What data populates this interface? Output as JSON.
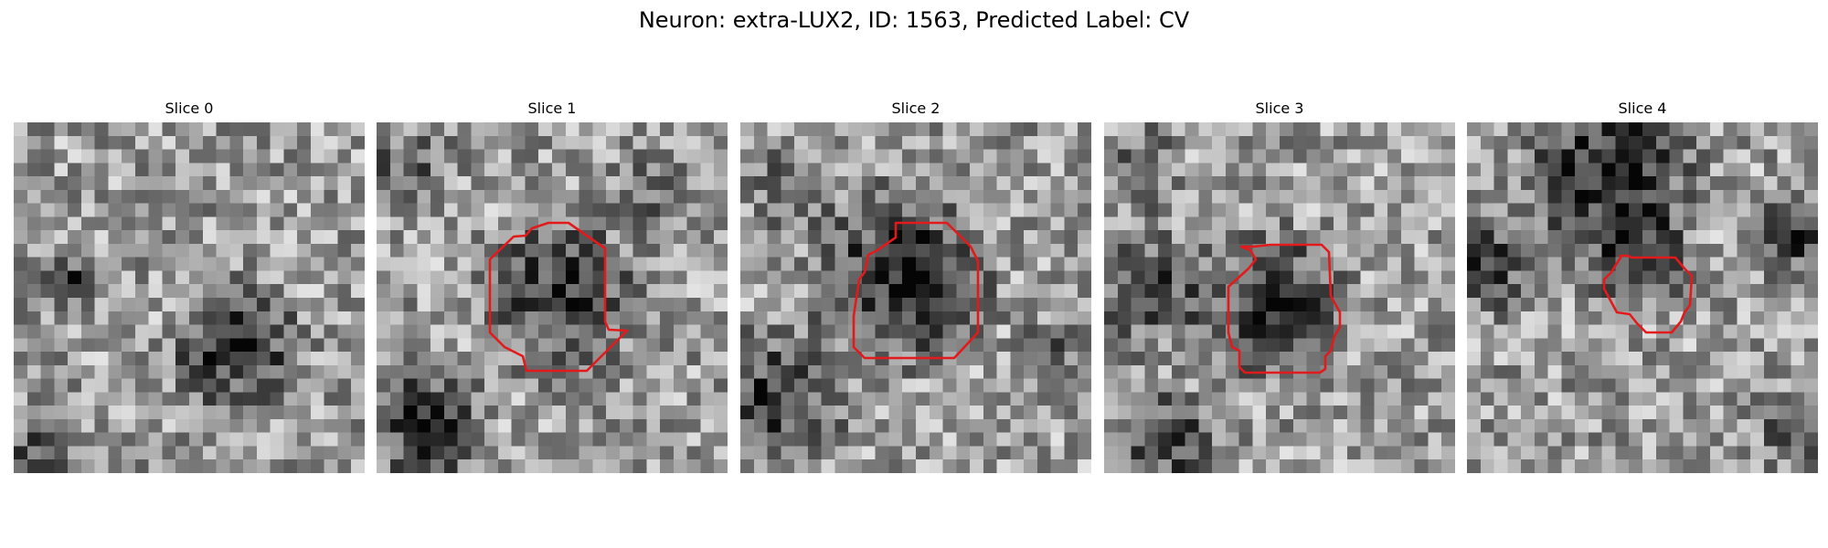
{
  "figure": {
    "title": "Neuron: extra-LUX2, ID: 1563, Predicted Label: CV",
    "contour_color": "#e31a1c"
  },
  "slices": [
    {
      "title": "Slice 0",
      "has_contour": false
    },
    {
      "title": "Slice 1",
      "has_contour": true
    },
    {
      "title": "Slice 2",
      "has_contour": true
    },
    {
      "title": "Slice 3",
      "has_contour": true
    },
    {
      "title": "Slice 4",
      "has_contour": true
    }
  ]
}
